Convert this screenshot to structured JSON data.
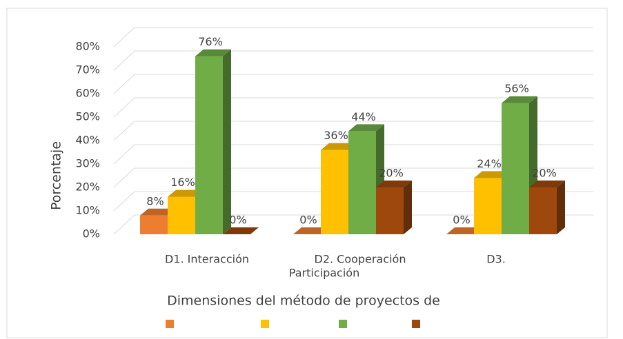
{
  "chart_data": {
    "type": "bar3d",
    "categories": [
      "D1. Interacción",
      "D2. Cooperación",
      "D3."
    ],
    "annotations": [
      "Participación"
    ],
    "x_label": "Dimensiones del método de proyectos de",
    "y_label": "Porcentaje",
    "series": [
      {
        "color": "#ed7d31",
        "values": [
          8,
          0,
          0
        ],
        "value_labels": [
          "8%",
          "0%",
          "0%"
        ]
      },
      {
        "color": "#ffc000",
        "values": [
          16,
          36,
          24
        ],
        "value_labels": [
          "16%",
          "36%",
          "24%"
        ]
      },
      {
        "color": "#70ad47",
        "values": [
          76,
          44,
          56
        ],
        "value_labels": [
          "76%",
          "44%",
          "56%"
        ]
      },
      {
        "color": "#9e480e",
        "values": [
          0,
          20,
          20
        ],
        "value_labels": [
          "0%",
          "20%",
          "20%"
        ]
      }
    ],
    "ylim": [
      0,
      80
    ],
    "yticks": [
      {
        "value": 0,
        "label": "0%"
      },
      {
        "value": 10,
        "label": "10%"
      },
      {
        "value": 20,
        "label": "20%"
      },
      {
        "value": 30,
        "label": "30%"
      },
      {
        "value": 40,
        "label": "40%"
      },
      {
        "value": 50,
        "label": "50%"
      },
      {
        "value": 60,
        "label": "60%"
      },
      {
        "value": 70,
        "label": "70%"
      },
      {
        "value": 80,
        "label": "80%"
      }
    ],
    "grid": true
  }
}
